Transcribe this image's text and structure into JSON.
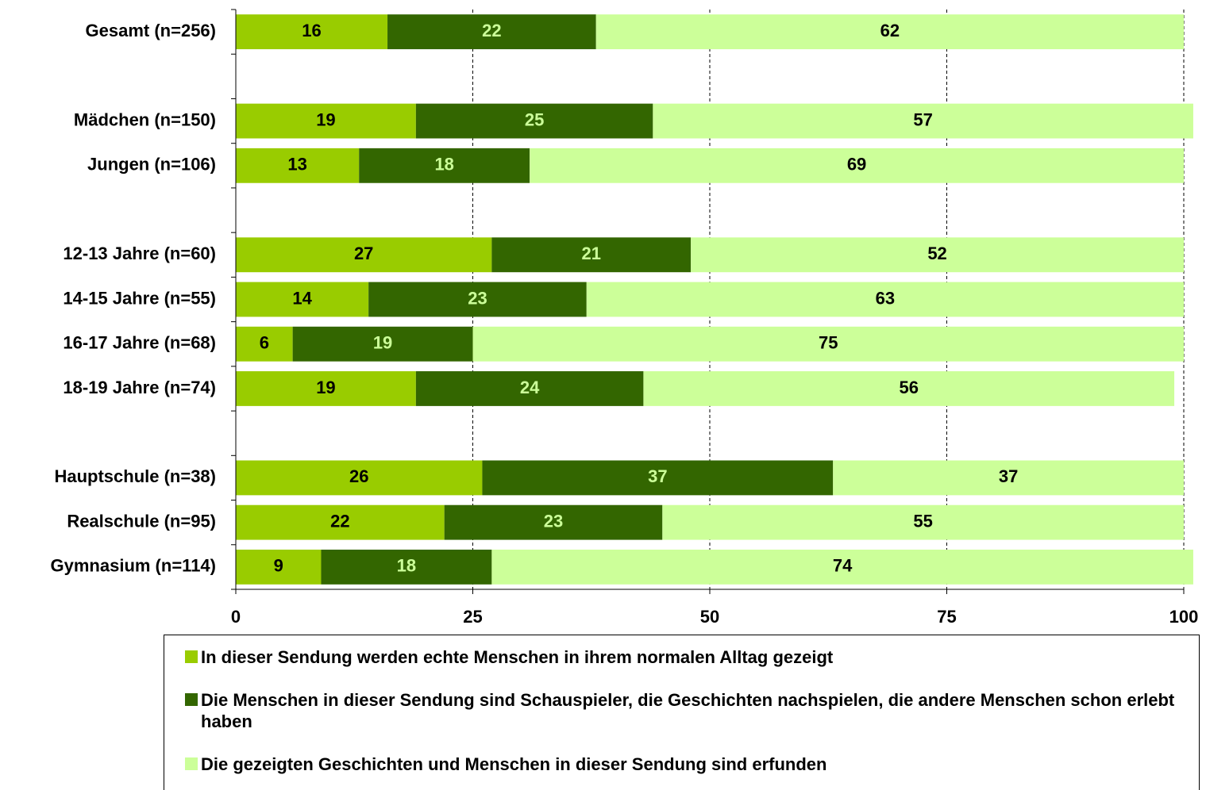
{
  "chart_data": {
    "type": "stacked_barh",
    "categories": [
      "Gesamt (n=256)",
      null,
      "Mädchen (n=150)",
      "Jungen (n=106)",
      null,
      "12-13 Jahre (n=60)",
      "14-15 Jahre (n=55)",
      "16-17 Jahre (n=68)",
      "18-19 Jahre (n=74)",
      null,
      "Hauptschule (n=38)",
      "Realschule (n=95)",
      "Gymnasium (n=114)"
    ],
    "series": [
      {
        "name": "In dieser Sendung werden echte Menschen in ihrem normalen Alltag gezeigt",
        "color": "#99cc00",
        "label_color": "#000000",
        "values": [
          16,
          null,
          19,
          13,
          null,
          27,
          14,
          6,
          19,
          null,
          26,
          22,
          9
        ]
      },
      {
        "name": "Die Menschen in dieser Sendung sind Schauspieler, die Geschichten nachspielen, die andere Menschen schon erlebt haben",
        "color": "#336600",
        "label_color": "#ccff99",
        "values": [
          22,
          null,
          25,
          18,
          null,
          21,
          23,
          19,
          24,
          null,
          37,
          23,
          18
        ]
      },
      {
        "name": "Die gezeigten Geschichten und Menschen in dieser Sendung sind erfunden",
        "color": "#ccff99",
        "label_color": "#000000",
        "values": [
          62,
          null,
          57,
          69,
          null,
          52,
          63,
          75,
          56,
          null,
          37,
          55,
          74
        ]
      }
    ],
    "xlim": [
      0,
      100
    ],
    "xticks": [
      0,
      25,
      50,
      75,
      100
    ],
    "grid": true
  }
}
